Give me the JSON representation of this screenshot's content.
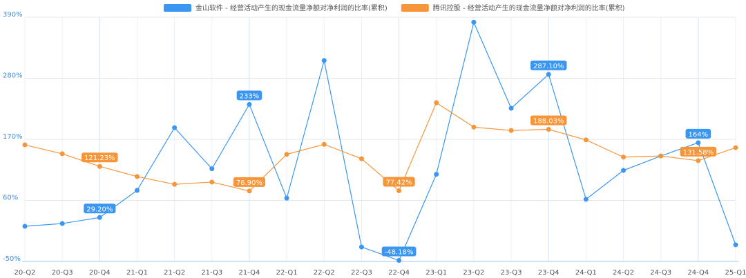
{
  "chart_data": {
    "type": "line",
    "categories": [
      "20-Q2",
      "20-Q3",
      "20-Q4",
      "21-Q1",
      "21-Q2",
      "21-Q3",
      "21-Q4",
      "22-Q1",
      "22-Q2",
      "22-Q3",
      "22-Q4",
      "23-Q1",
      "23-Q2",
      "23-Q3",
      "23-Q4",
      "24-Q1",
      "24-Q2",
      "24-Q3",
      "24-Q4",
      "25-Q1"
    ],
    "series": [
      {
        "name": "金山软件 - 经营活动产生的现金流量净额对净利润的比率(累积)",
        "color": "#3a96f0",
        "values": [
          13.4,
          18.3,
          29.2,
          78,
          191,
          117,
          233,
          64,
          312,
          -24,
          -48.18,
          107,
          381,
          226,
          287.1,
          62,
          114,
          140,
          164,
          -20
        ],
        "value_labels": [
          null,
          null,
          "29.20%",
          null,
          null,
          null,
          "233%",
          null,
          null,
          null,
          "-48.18%",
          null,
          null,
          null,
          "287.10%",
          null,
          null,
          null,
          "164%",
          null
        ]
      },
      {
        "name": "腾讯控股 - 经营活动产生的现金流量净额对净利润的比率(累积)",
        "color": "#f7953a",
        "values": [
          160,
          144,
          121.23,
          103,
          89,
          93,
          76.9,
          143,
          161,
          135,
          77.42,
          236,
          192,
          186,
          188.03,
          169,
          138,
          140,
          131.58,
          155
        ],
        "value_labels": [
          null,
          null,
          "121.23%",
          null,
          null,
          null,
          "76.90%",
          null,
          null,
          null,
          "77.42%",
          null,
          null,
          null,
          "188.03%",
          null,
          null,
          null,
          "131.58%",
          null
        ]
      }
    ],
    "ylim": [
      -50,
      390
    ],
    "yticks": [
      {
        "value": -50,
        "label": "-50%"
      },
      {
        "value": 60,
        "label": "60%"
      },
      {
        "value": 170,
        "label": "170%"
      },
      {
        "value": 280,
        "label": "280%"
      },
      {
        "value": 390,
        "label": "390%"
      }
    ],
    "grid": true,
    "legend": "top"
  }
}
